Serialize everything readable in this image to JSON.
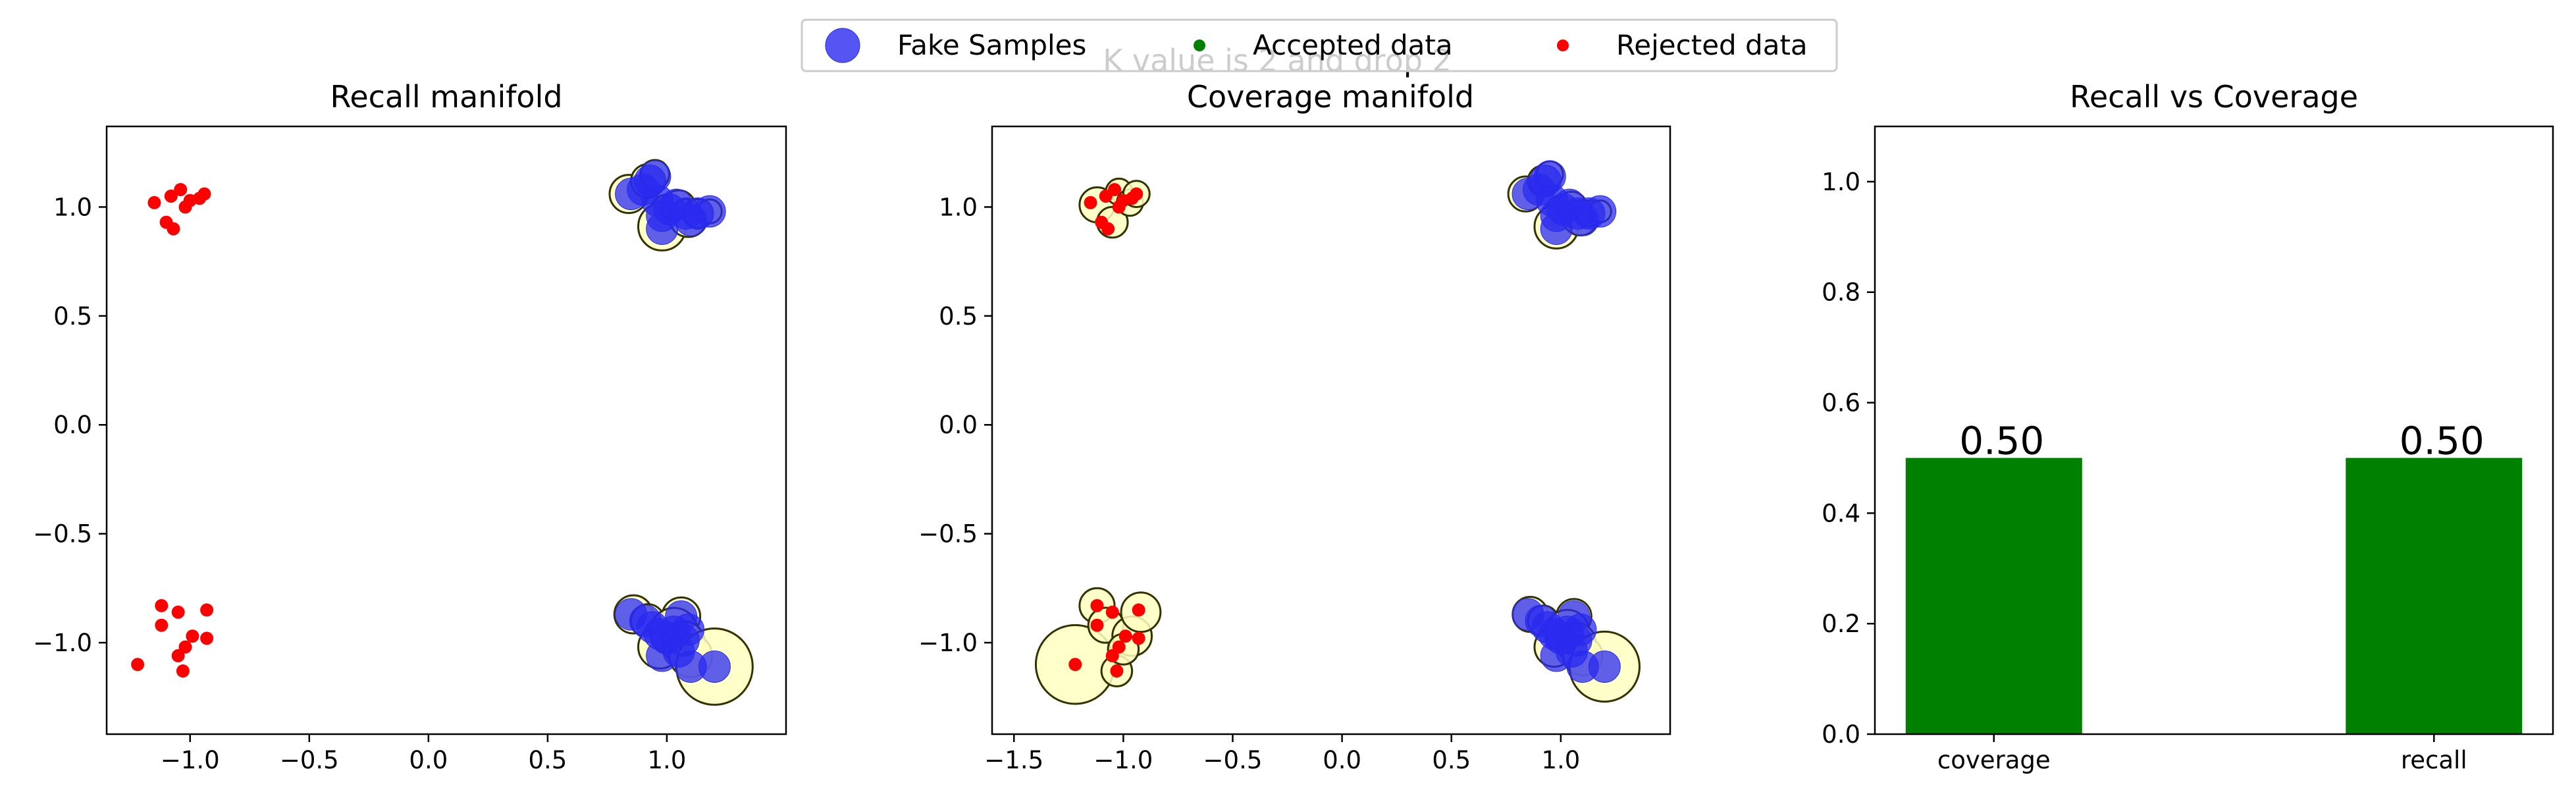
{
  "suptitle": "K value is 2 and drop 2",
  "legend": {
    "placement": "top-center",
    "entries": [
      {
        "label": "Fake Samples",
        "color": "#2a2af0",
        "marker": "large-circle"
      },
      {
        "label": "Accepted data",
        "color": "#008000",
        "marker": "small-dot"
      },
      {
        "label": "Rejected data",
        "color": "#ff0000",
        "marker": "small-dot"
      }
    ]
  },
  "colors": {
    "fake": "#2a2af0",
    "accepted": "#008000",
    "rejected": "#ff0000",
    "manifold_fill": "#ffffc0",
    "manifold_edge": "#333300",
    "bar": "#008000"
  },
  "chart_data": [
    {
      "type": "scatter",
      "title": "Recall manifold",
      "xlim": [
        -1.35,
        1.5
      ],
      "ylim": [
        -1.42,
        1.37
      ],
      "xticks": [
        -1.0,
        -0.5,
        0.0,
        0.5,
        1.0
      ],
      "xtick_labels": [
        "−1.0",
        "−0.5",
        "0.0",
        "0.5",
        "1.0"
      ],
      "yticks": [
        -1.0,
        -0.5,
        0.0,
        0.5,
        1.0
      ],
      "ytick_labels": [
        "−1.0",
        "−0.5",
        "0.0",
        "0.5",
        "1.0"
      ],
      "grid": false,
      "manifold_circles": [
        {
          "x": 0.84,
          "y": 1.06,
          "r": 0.08
        },
        {
          "x": 0.92,
          "y": 1.12,
          "r": 0.07
        },
        {
          "x": 0.95,
          "y": 1.15,
          "r": 0.06
        },
        {
          "x": 1.0,
          "y": 0.98,
          "r": 0.07
        },
        {
          "x": 0.98,
          "y": 0.91,
          "r": 0.1
        },
        {
          "x": 1.05,
          "y": 1.0,
          "r": 0.07
        },
        {
          "x": 1.09,
          "y": 0.95,
          "r": 0.08
        },
        {
          "x": 1.13,
          "y": 0.97,
          "r": 0.06
        },
        {
          "x": 1.18,
          "y": 0.98,
          "r": 0.05
        },
        {
          "x": 0.86,
          "y": -0.87,
          "r": 0.08
        },
        {
          "x": 0.92,
          "y": -0.9,
          "r": 0.07
        },
        {
          "x": 1.06,
          "y": -0.88,
          "r": 0.08
        },
        {
          "x": 0.97,
          "y": -1.02,
          "r": 0.09
        },
        {
          "x": 1.03,
          "y": -0.95,
          "r": 0.1
        },
        {
          "x": 1.07,
          "y": -1.0,
          "r": 0.09
        },
        {
          "x": 1.1,
          "y": -1.06,
          "r": 0.09
        },
        {
          "x": 1.2,
          "y": -1.11,
          "r": 0.16
        }
      ],
      "fake": [
        {
          "x": 0.85,
          "y": 1.06
        },
        {
          "x": 0.9,
          "y": 1.08
        },
        {
          "x": 0.93,
          "y": 1.12
        },
        {
          "x": 0.95,
          "y": 1.14
        },
        {
          "x": 0.96,
          "y": 1.03
        },
        {
          "x": 0.98,
          "y": 0.96
        },
        {
          "x": 1.01,
          "y": 0.99
        },
        {
          "x": 1.04,
          "y": 1.01
        },
        {
          "x": 1.08,
          "y": 0.97
        },
        {
          "x": 1.1,
          "y": 0.94
        },
        {
          "x": 1.13,
          "y": 0.97
        },
        {
          "x": 1.18,
          "y": 0.98
        },
        {
          "x": 0.98,
          "y": 0.9
        },
        {
          "x": 0.85,
          "y": -0.87
        },
        {
          "x": 0.91,
          "y": -0.9
        },
        {
          "x": 0.94,
          "y": -0.93
        },
        {
          "x": 0.97,
          "y": -0.96
        },
        {
          "x": 1.0,
          "y": -0.98
        },
        {
          "x": 1.03,
          "y": -0.95
        },
        {
          "x": 1.06,
          "y": -0.88
        },
        {
          "x": 1.07,
          "y": -0.99
        },
        {
          "x": 1.09,
          "y": -0.94
        },
        {
          "x": 1.05,
          "y": -1.04
        },
        {
          "x": 0.98,
          "y": -1.06
        },
        {
          "x": 1.1,
          "y": -1.11
        },
        {
          "x": 1.2,
          "y": -1.11
        }
      ],
      "rejected": [
        {
          "x": -1.15,
          "y": 1.02
        },
        {
          "x": -1.1,
          "y": 0.93
        },
        {
          "x": -1.07,
          "y": 0.9
        },
        {
          "x": -1.08,
          "y": 1.05
        },
        {
          "x": -1.04,
          "y": 1.08
        },
        {
          "x": -1.02,
          "y": 1.0
        },
        {
          "x": -1.0,
          "y": 1.03
        },
        {
          "x": -0.96,
          "y": 1.04
        },
        {
          "x": -0.94,
          "y": 1.06
        },
        {
          "x": -1.22,
          "y": -1.1
        },
        {
          "x": -1.12,
          "y": -0.83
        },
        {
          "x": -1.12,
          "y": -0.92
        },
        {
          "x": -1.05,
          "y": -0.86
        },
        {
          "x": -1.05,
          "y": -1.06
        },
        {
          "x": -1.02,
          "y": -1.02
        },
        {
          "x": -1.03,
          "y": -1.13
        },
        {
          "x": -0.99,
          "y": -0.97
        },
        {
          "x": -0.93,
          "y": -0.85
        },
        {
          "x": -0.93,
          "y": -0.98
        }
      ],
      "accepted": []
    },
    {
      "type": "scatter",
      "title": "Coverage manifold",
      "xlim": [
        -1.6,
        1.5
      ],
      "ylim": [
        -1.42,
        1.37
      ],
      "xticks": [
        -1.5,
        -1.0,
        -0.5,
        0.0,
        0.5,
        1.0
      ],
      "xtick_labels": [
        "−1.5",
        "−1.0",
        "−0.5",
        "0.0",
        "0.5",
        "1.0"
      ],
      "yticks": [
        -1.0,
        -0.5,
        0.0,
        0.5,
        1.0
      ],
      "ytick_labels": [
        "−1.0",
        "−0.5",
        "0.0",
        "0.5",
        "1.0"
      ],
      "grid": false,
      "manifold_circles": [
        {
          "x": 0.84,
          "y": 1.06,
          "r": 0.08
        },
        {
          "x": 0.92,
          "y": 1.12,
          "r": 0.07
        },
        {
          "x": 0.95,
          "y": 1.15,
          "r": 0.06
        },
        {
          "x": 1.0,
          "y": 0.98,
          "r": 0.07
        },
        {
          "x": 0.98,
          "y": 0.91,
          "r": 0.1
        },
        {
          "x": 1.05,
          "y": 1.0,
          "r": 0.07
        },
        {
          "x": 1.09,
          "y": 0.95,
          "r": 0.08
        },
        {
          "x": 1.13,
          "y": 0.97,
          "r": 0.06
        },
        {
          "x": 1.18,
          "y": 0.98,
          "r": 0.05
        },
        {
          "x": 0.86,
          "y": -0.87,
          "r": 0.08
        },
        {
          "x": 0.92,
          "y": -0.9,
          "r": 0.07
        },
        {
          "x": 1.06,
          "y": -0.88,
          "r": 0.08
        },
        {
          "x": 0.97,
          "y": -1.02,
          "r": 0.09
        },
        {
          "x": 1.03,
          "y": -0.95,
          "r": 0.1
        },
        {
          "x": 1.07,
          "y": -1.0,
          "r": 0.09
        },
        {
          "x": 1.1,
          "y": -1.06,
          "r": 0.09
        },
        {
          "x": 1.2,
          "y": -1.11,
          "r": 0.16
        },
        {
          "x": -1.12,
          "y": 1.01,
          "r": 0.08
        },
        {
          "x": -1.05,
          "y": 0.93,
          "r": 0.07
        },
        {
          "x": -1.02,
          "y": 1.07,
          "r": 0.06
        },
        {
          "x": -0.97,
          "y": 1.02,
          "r": 0.06
        },
        {
          "x": -0.94,
          "y": 1.06,
          "r": 0.06
        },
        {
          "x": -1.22,
          "y": -1.1,
          "r": 0.18
        },
        {
          "x": -1.12,
          "y": -0.83,
          "r": 0.08
        },
        {
          "x": -1.08,
          "y": -0.92,
          "r": 0.08
        },
        {
          "x": -0.96,
          "y": -0.97,
          "r": 0.09
        },
        {
          "x": -0.92,
          "y": -0.86,
          "r": 0.09
        },
        {
          "x": -1.03,
          "y": -1.13,
          "r": 0.07
        },
        {
          "x": -1.0,
          "y": -1.03,
          "r": 0.07
        }
      ],
      "fake": [
        {
          "x": 0.85,
          "y": 1.06
        },
        {
          "x": 0.9,
          "y": 1.08
        },
        {
          "x": 0.93,
          "y": 1.12
        },
        {
          "x": 0.95,
          "y": 1.14
        },
        {
          "x": 0.96,
          "y": 1.03
        },
        {
          "x": 0.98,
          "y": 0.96
        },
        {
          "x": 1.01,
          "y": 0.99
        },
        {
          "x": 1.04,
          "y": 1.01
        },
        {
          "x": 1.08,
          "y": 0.97
        },
        {
          "x": 1.1,
          "y": 0.94
        },
        {
          "x": 1.13,
          "y": 0.97
        },
        {
          "x": 1.18,
          "y": 0.98
        },
        {
          "x": 0.98,
          "y": 0.9
        },
        {
          "x": 0.85,
          "y": -0.87
        },
        {
          "x": 0.91,
          "y": -0.9
        },
        {
          "x": 0.94,
          "y": -0.93
        },
        {
          "x": 0.97,
          "y": -0.96
        },
        {
          "x": 1.0,
          "y": -0.98
        },
        {
          "x": 1.03,
          "y": -0.95
        },
        {
          "x": 1.06,
          "y": -0.88
        },
        {
          "x": 1.07,
          "y": -0.99
        },
        {
          "x": 1.09,
          "y": -0.94
        },
        {
          "x": 1.05,
          "y": -1.04
        },
        {
          "x": 0.98,
          "y": -1.06
        },
        {
          "x": 1.1,
          "y": -1.11
        },
        {
          "x": 1.2,
          "y": -1.11
        }
      ],
      "rejected": [
        {
          "x": -1.15,
          "y": 1.02
        },
        {
          "x": -1.1,
          "y": 0.93
        },
        {
          "x": -1.07,
          "y": 0.9
        },
        {
          "x": -1.08,
          "y": 1.05
        },
        {
          "x": -1.04,
          "y": 1.08
        },
        {
          "x": -1.02,
          "y": 1.0
        },
        {
          "x": -1.0,
          "y": 1.03
        },
        {
          "x": -0.96,
          "y": 1.04
        },
        {
          "x": -0.94,
          "y": 1.06
        },
        {
          "x": -1.22,
          "y": -1.1
        },
        {
          "x": -1.12,
          "y": -0.83
        },
        {
          "x": -1.12,
          "y": -0.92
        },
        {
          "x": -1.05,
          "y": -0.86
        },
        {
          "x": -1.05,
          "y": -1.06
        },
        {
          "x": -1.02,
          "y": -1.02
        },
        {
          "x": -1.03,
          "y": -1.13
        },
        {
          "x": -0.99,
          "y": -0.97
        },
        {
          "x": -0.93,
          "y": -0.85
        },
        {
          "x": -0.93,
          "y": -0.98
        }
      ],
      "accepted": []
    },
    {
      "type": "bar",
      "title": "Recall vs Coverage",
      "categories": [
        "coverage",
        "recall"
      ],
      "values": [
        0.5,
        0.5
      ],
      "value_labels": [
        "0.50",
        "0.50"
      ],
      "ylim": [
        0.0,
        1.1
      ],
      "yticks": [
        0.0,
        0.2,
        0.4,
        0.6,
        0.8,
        1.0
      ],
      "ytick_labels": [
        "0.0",
        "0.2",
        "0.4",
        "0.6",
        "0.8",
        "1.0"
      ],
      "grid": false
    }
  ]
}
